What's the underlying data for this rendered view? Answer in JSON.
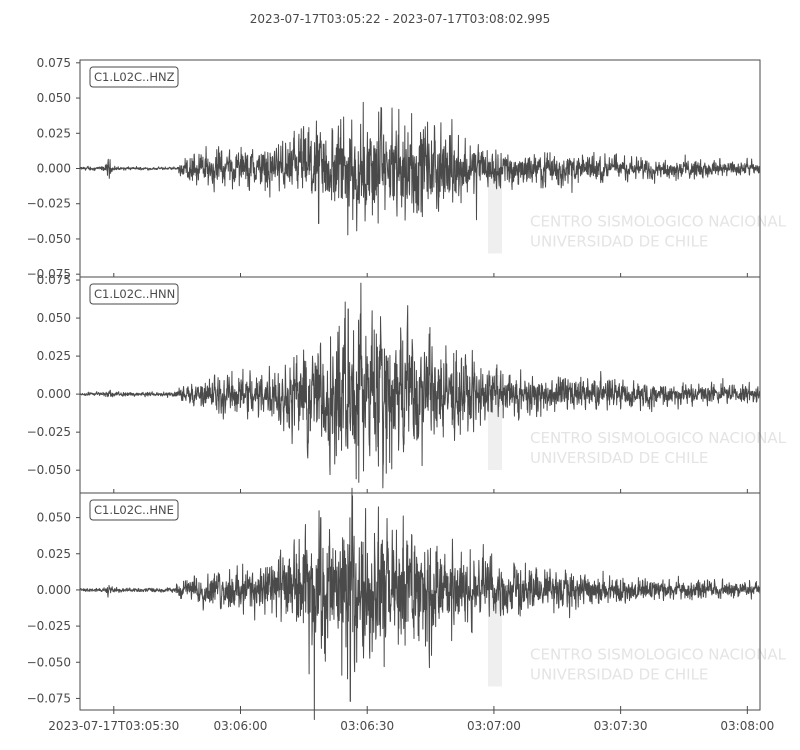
{
  "title": "2023-07-17T03:05:22  -  2023-07-17T03:08:02.995",
  "chart_data": {
    "type": "line",
    "title": "2023-07-17T03:05:22  -  2023-07-17T03:08:02.995",
    "xlabel": "",
    "ylabel": "",
    "grid": false,
    "line_color": "#4a4a4a",
    "x_range_seconds": [
      22,
      183
    ],
    "x_ticks": [
      {
        "label": "2023-07-17T03:05:30",
        "seconds": 30
      },
      {
        "label": "03:06:00",
        "seconds": 60
      },
      {
        "label": "03:06:30",
        "seconds": 90
      },
      {
        "label": "03:07:00",
        "seconds": 120
      },
      {
        "label": "03:07:30",
        "seconds": 150
      },
      {
        "label": "03:08:00",
        "seconds": 180
      }
    ],
    "panels": [
      {
        "name": "C1.L02C..HNZ",
        "ylim": [
          -0.077,
          0.077
        ],
        "y_ticks": [
          "0.075",
          "0.050",
          "0.025",
          "0.000",
          "−0.025",
          "−0.050",
          "−0.075"
        ],
        "y_tick_values": [
          0.075,
          0.05,
          0.025,
          0,
          -0.025,
          -0.05,
          -0.075
        ],
        "envelope": [
          {
            "t": 22,
            "a": 0.0008
          },
          {
            "t": 28,
            "a": 0.0015
          },
          {
            "t": 28.8,
            "a": 0.006
          },
          {
            "t": 29.6,
            "a": 0.0012
          },
          {
            "t": 37,
            "a": 0.0008
          },
          {
            "t": 45,
            "a": 0.0008
          },
          {
            "t": 45.5,
            "a": 0.004
          },
          {
            "t": 48,
            "a": 0.009
          },
          {
            "t": 60,
            "a": 0.011
          },
          {
            "t": 70,
            "a": 0.014
          },
          {
            "t": 76,
            "a": 0.022
          },
          {
            "t": 82,
            "a": 0.028
          },
          {
            "t": 88,
            "a": 0.034
          },
          {
            "t": 95,
            "a": 0.028
          },
          {
            "t": 100,
            "a": 0.033
          },
          {
            "t": 105,
            "a": 0.026
          },
          {
            "t": 112,
            "a": 0.017
          },
          {
            "t": 120,
            "a": 0.011
          },
          {
            "t": 130,
            "a": 0.009
          },
          {
            "t": 140,
            "a": 0.009
          },
          {
            "t": 150,
            "a": 0.006
          },
          {
            "t": 160,
            "a": 0.005
          },
          {
            "t": 170,
            "a": 0.005
          },
          {
            "t": 183,
            "a": 0.0035
          }
        ],
        "spikes": [
          {
            "t": 76.2,
            "v": 0.029
          },
          {
            "t": 100.5,
            "v": 0.039
          },
          {
            "t": 78.5,
            "v": -0.039
          },
          {
            "t": 138.5,
            "v": -0.017
          },
          {
            "t": 173.5,
            "v": 0.007
          }
        ]
      },
      {
        "name": "C1.L02C..HNN",
        "ylim": [
          -0.065,
          0.077
        ],
        "y_ticks": [
          "0.075",
          "0.050",
          "0.025",
          "0.000",
          "−0.025",
          "−0.050"
        ],
        "y_tick_values": [
          0.075,
          0.05,
          0.025,
          0,
          -0.025,
          -0.05
        ],
        "envelope": [
          {
            "t": 22,
            "a": 0.0008
          },
          {
            "t": 28,
            "a": 0.0012
          },
          {
            "t": 28.8,
            "a": 0.003
          },
          {
            "t": 30,
            "a": 0.001
          },
          {
            "t": 44,
            "a": 0.0012
          },
          {
            "t": 46,
            "a": 0.004
          },
          {
            "t": 52,
            "a": 0.008
          },
          {
            "t": 60,
            "a": 0.011
          },
          {
            "t": 68,
            "a": 0.015
          },
          {
            "t": 75,
            "a": 0.024
          },
          {
            "t": 80,
            "a": 0.032
          },
          {
            "t": 86,
            "a": 0.04
          },
          {
            "t": 92,
            "a": 0.042
          },
          {
            "t": 98,
            "a": 0.036
          },
          {
            "t": 104,
            "a": 0.03
          },
          {
            "t": 112,
            "a": 0.02
          },
          {
            "t": 120,
            "a": 0.013
          },
          {
            "t": 130,
            "a": 0.01
          },
          {
            "t": 140,
            "a": 0.009
          },
          {
            "t": 150,
            "a": 0.007
          },
          {
            "t": 160,
            "a": 0.006
          },
          {
            "t": 170,
            "a": 0.005
          },
          {
            "t": 183,
            "a": 0.0045
          }
        ],
        "spikes": [
          {
            "t": 88.5,
            "v": 0.073
          },
          {
            "t": 85.5,
            "v": 0.056
          },
          {
            "t": 88,
            "v": -0.058
          },
          {
            "t": 94.5,
            "v": -0.052
          },
          {
            "t": 103,
            "v": -0.047
          }
        ]
      },
      {
        "name": "C1.L02C..HNE",
        "ylim": [
          -0.083,
          0.067
        ],
        "y_ticks": [
          "0.050",
          "0.025",
          "0.000",
          "−0.025",
          "−0.050",
          "−0.075"
        ],
        "y_tick_values": [
          0.05,
          0.025,
          0,
          -0.025,
          -0.05,
          -0.075
        ],
        "envelope": [
          {
            "t": 22,
            "a": 0.0008
          },
          {
            "t": 28,
            "a": 0.0012
          },
          {
            "t": 28.8,
            "a": 0.004
          },
          {
            "t": 30,
            "a": 0.0012
          },
          {
            "t": 44,
            "a": 0.0012
          },
          {
            "t": 46,
            "a": 0.005
          },
          {
            "t": 52,
            "a": 0.009
          },
          {
            "t": 60,
            "a": 0.012
          },
          {
            "t": 66,
            "a": 0.015
          },
          {
            "t": 72,
            "a": 0.022
          },
          {
            "t": 76,
            "a": 0.03
          },
          {
            "t": 80,
            "a": 0.034
          },
          {
            "t": 86,
            "a": 0.04
          },
          {
            "t": 92,
            "a": 0.038
          },
          {
            "t": 98,
            "a": 0.034
          },
          {
            "t": 104,
            "a": 0.03
          },
          {
            "t": 112,
            "a": 0.022
          },
          {
            "t": 120,
            "a": 0.016
          },
          {
            "t": 130,
            "a": 0.013
          },
          {
            "t": 140,
            "a": 0.01
          },
          {
            "t": 150,
            "a": 0.007
          },
          {
            "t": 160,
            "a": 0.006
          },
          {
            "t": 170,
            "a": 0.005
          },
          {
            "t": 183,
            "a": 0.004
          }
        ],
        "spikes": [
          {
            "t": 86.5,
            "v": 0.065
          },
          {
            "t": 79,
            "v": 0.05
          },
          {
            "t": 86,
            "v": -0.077
          },
          {
            "t": 84,
            "v": -0.059
          },
          {
            "t": 94,
            "v": -0.053
          }
        ]
      }
    ]
  },
  "watermark": {
    "lines": [
      "CENTRO SISMOLOGICO NACIONAL",
      "UNIVERSIDAD DE CHILE"
    ],
    "color": "#e4e4e4"
  }
}
